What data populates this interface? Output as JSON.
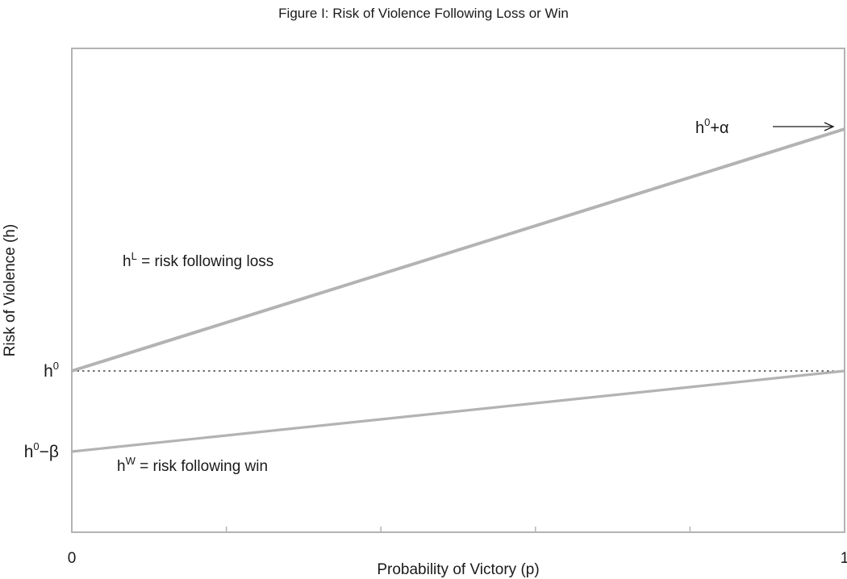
{
  "chart_data": {
    "type": "line",
    "title": "Figure I: Risk of Violence Following Loss or Win",
    "xlabel": "Probability of Victory (p)",
    "ylabel": "Risk of Violence (h)",
    "xlim": [
      0,
      1
    ],
    "x_tick_labels": [
      {
        "x": 0,
        "label": "0"
      },
      {
        "x": 1,
        "label": "1"
      }
    ],
    "x_minor_ticks": [
      0.2,
      0.4,
      0.6,
      0.8
    ],
    "ylim": [
      -1.0,
      2.0
    ],
    "y_tick_labels": [
      {
        "y": 0,
        "base": "h",
        "sup": "0",
        "tail": ""
      },
      {
        "y": -0.5,
        "base": "h",
        "sup": "0",
        "tail": "−β"
      }
    ],
    "reference_line": {
      "y": 0,
      "style": "dotted"
    },
    "series": [
      {
        "key": "loss",
        "label": {
          "base": "h",
          "sup": "L",
          "tail": " = risk following loss"
        },
        "x": [
          0,
          0.2,
          0.4,
          0.6,
          0.8,
          1
        ],
        "y": [
          0,
          0.3,
          0.6,
          0.9,
          1.2,
          1.5
        ],
        "color": "#b3b3b3"
      },
      {
        "key": "win",
        "label": {
          "base": "h",
          "sup": "W",
          "tail": " = risk following win"
        },
        "x": [
          0,
          0.2,
          0.4,
          0.6,
          0.8,
          1
        ],
        "y": [
          -0.5,
          -0.4,
          -0.3,
          -0.2,
          -0.1,
          0
        ],
        "color": "#b3b3b3"
      }
    ],
    "annotations": [
      {
        "base": "h",
        "sup": "0",
        "tail": "+α",
        "points_to": {
          "x": 1,
          "y": 1.5
        }
      }
    ],
    "grid": false,
    "legend": "none"
  }
}
